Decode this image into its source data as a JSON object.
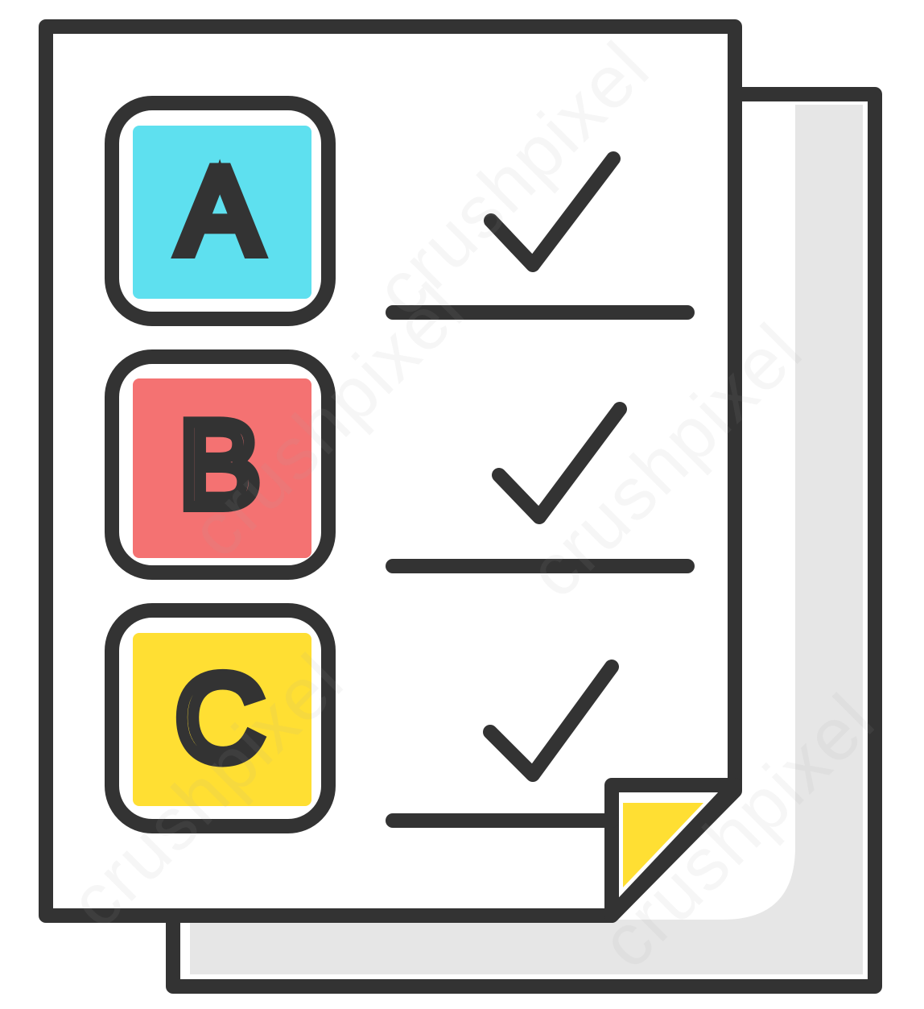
{
  "colors": {
    "outline": "#333333",
    "paper": "#ffffff",
    "shadow": "#e6e6e6",
    "option_a_fill": "#5ee0ef",
    "option_b_fill": "#f47272",
    "option_c_fill": "#ffdf33",
    "fold_fill": "#ffdf33"
  },
  "options": [
    {
      "letter": "A",
      "checked": true
    },
    {
      "letter": "B",
      "checked": true
    },
    {
      "letter": "C",
      "checked": true
    }
  ],
  "watermark": {
    "brand": "crushpixel"
  },
  "icons": {
    "document": "document-icon",
    "back_sheet": "back-sheet-icon",
    "checkmark": "checkmark-icon",
    "folded_corner": "folded-corner-icon"
  }
}
